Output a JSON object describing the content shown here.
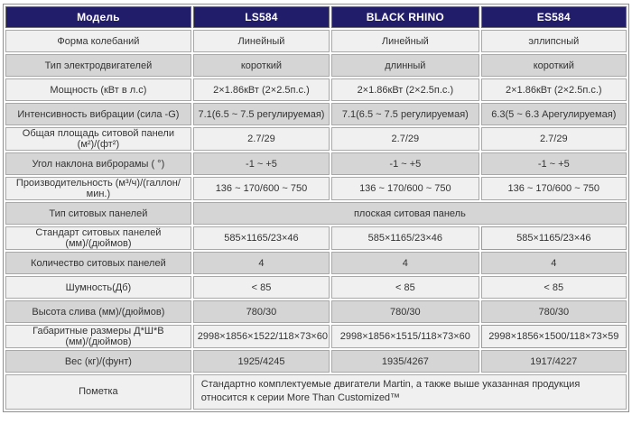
{
  "table": {
    "header": {
      "label": "Модель",
      "models": [
        "LS584",
        "BLACK RHINO",
        "ES584"
      ]
    },
    "rows": [
      {
        "label": "Форма колебаний",
        "values": [
          "Линейный",
          "Линейный",
          "эллипсный"
        ]
      },
      {
        "label": "Тип электродвигателей",
        "values": [
          "короткий",
          "длинный",
          "короткий"
        ]
      },
      {
        "label": "Мощность (кВт в л.с)",
        "values": [
          "2×1.86кВт (2×2.5п.с.)",
          "2×1.86кВт (2×2.5п.с.)",
          "2×1.86кВт (2×2.5п.с.)"
        ]
      },
      {
        "label": "Интенсивность вибрации (сила -G)",
        "values": [
          "7.1(6.5 ~ 7.5 регулируемая)",
          "7.1(6.5 ~ 7.5 регулируемая)",
          "6.3(5 ~ 6.3 Арегулируемая)"
        ]
      },
      {
        "label": "Общая площадь ситовой панели (м²)/(фт²)",
        "values": [
          "2.7/29",
          "2.7/29",
          "2.7/29"
        ]
      },
      {
        "label": "Угол наклона виброрамы ( °)",
        "values": [
          "-1 ~ +5",
          "-1 ~ +5",
          "-1 ~ +5"
        ]
      },
      {
        "label": "Производительность (м³/ч)/(галлон/мин.)",
        "values": [
          "136 ~ 170/600 ~ 750",
          "136 ~ 170/600 ~ 750",
          "136 ~ 170/600 ~ 750"
        ]
      },
      {
        "label": "Тип ситовых панелей",
        "merged": "плоская ситовая панель"
      },
      {
        "label": "Стандарт ситовых панелей (мм)/(дюймов)",
        "values": [
          "585×1165/23×46",
          "585×1165/23×46",
          "585×1165/23×46"
        ],
        "highlight": 2
      },
      {
        "label": "Количество ситовых панелей",
        "values": [
          "4",
          "4",
          "4"
        ]
      },
      {
        "label": "Шумность(Дб)",
        "values": [
          "< 85",
          "< 85",
          "< 85"
        ]
      },
      {
        "label": "Высота слива (мм)/(дюймов)",
        "values": [
          "780/30",
          "780/30",
          "780/30"
        ]
      },
      {
        "label": "Габаритные размеры Д*Ш*В (мм)/(дюймов)",
        "values": [
          "2998×1856×1522/118×73×60",
          "2998×1856×1515/118×73×60",
          "2998×1856×1500/118×73×59"
        ],
        "highlight": 2
      },
      {
        "label": "Вес (кг)/(фунт)",
        "values": [
          "1925/4245",
          "1935/4267",
          "1917/4227"
        ]
      },
      {
        "label": "Пометка",
        "merged": "Стандартно комплектуемые двигатели Martin,  а также выше указанная продукция относится к серии More Than Customized™",
        "merged_align": "left"
      }
    ],
    "colors": {
      "header_bg": "#221d6b",
      "header_text": "#ffffff",
      "row_light": "#f0f0f0",
      "row_dark": "#d5d5d5",
      "highlight_bg": "#ffffff",
      "grid": "#a8a8a8",
      "text": "#333333"
    }
  }
}
